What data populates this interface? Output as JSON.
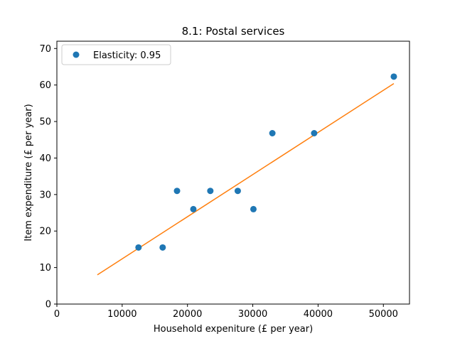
{
  "chart_data": {
    "type": "scatter",
    "title": "8.1: Postal services",
    "xlabel": "Household expeniture (£ per year)",
    "ylabel": "Item expenditure (£ per year)",
    "xlim": [
      0,
      54000
    ],
    "ylim": [
      0,
      72
    ],
    "xticks": [
      0,
      10000,
      20000,
      30000,
      40000,
      50000
    ],
    "yticks": [
      0,
      10,
      20,
      30,
      40,
      50,
      60,
      70
    ],
    "legend_position": "upper-left",
    "grid": false,
    "series": [
      {
        "name": "Elasticity: 0.95",
        "kind": "scatter",
        "color": "#1f77b4",
        "points": [
          {
            "x": 12500,
            "y": 15.5
          },
          {
            "x": 16200,
            "y": 15.5
          },
          {
            "x": 18400,
            "y": 31.0
          },
          {
            "x": 20900,
            "y": 26.0
          },
          {
            "x": 23500,
            "y": 31.0
          },
          {
            "x": 27700,
            "y": 31.0
          },
          {
            "x": 30100,
            "y": 26.0
          },
          {
            "x": 33000,
            "y": 46.8
          },
          {
            "x": 39400,
            "y": 46.8
          },
          {
            "x": 51600,
            "y": 62.3
          }
        ]
      },
      {
        "kind": "line",
        "color": "#ff7f0e",
        "points": [
          {
            "x": 6200,
            "y": 8.0
          },
          {
            "x": 51600,
            "y": 60.4
          }
        ]
      }
    ]
  }
}
